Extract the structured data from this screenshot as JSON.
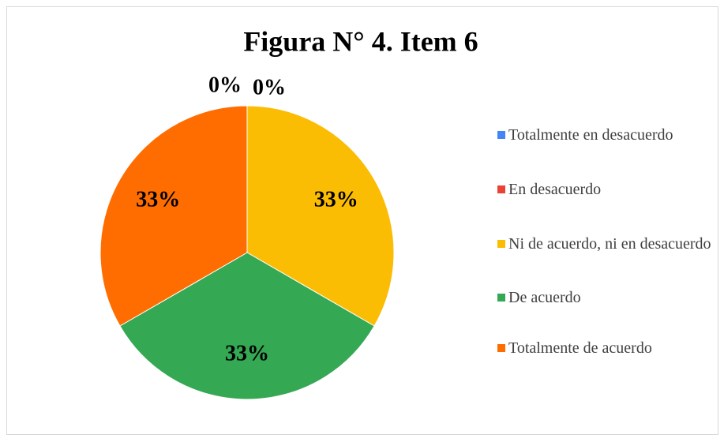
{
  "chart_data": {
    "type": "pie",
    "title": "Figura N° 4. Item 6",
    "categories": [
      "Totalmente en desacuerdo",
      "En desacuerdo",
      "Ni de acuerdo, ni en desacuerdo",
      "De acuerdo",
      "Totalmente de acuerdo"
    ],
    "values": [
      0,
      0,
      33,
      33,
      33
    ],
    "value_labels": [
      "0%",
      "0%",
      "33%",
      "33%",
      "33%"
    ],
    "colors": [
      "#4285f4",
      "#ea4335",
      "#fbbc04",
      "#34a853",
      "#ff6d01"
    ],
    "legend": "right"
  }
}
